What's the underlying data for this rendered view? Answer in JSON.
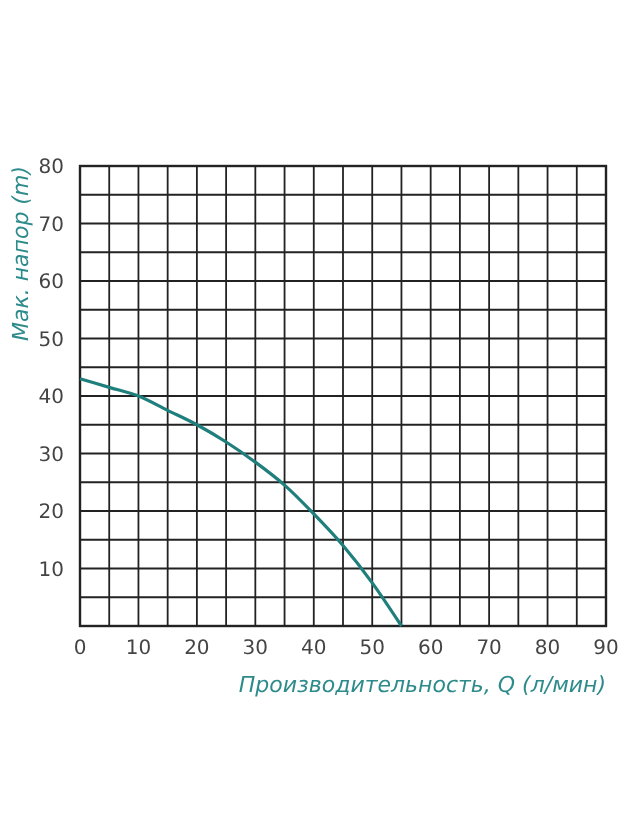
{
  "chart_data": {
    "type": "line",
    "xlabel": "Производительность, Q (л/мин)",
    "ylabel": "Мак. напор (m)",
    "x": [
      0,
      5,
      10,
      15,
      20,
      25,
      30,
      35,
      40,
      45,
      50,
      55
    ],
    "series": [
      {
        "color": "#1f7f7c",
        "values": [
          43,
          41.5,
          40,
          37.5,
          35,
          32,
          28.5,
          24.5,
          19.5,
          14,
          7.5,
          0
        ]
      }
    ],
    "xlim": [
      0,
      90
    ],
    "ylim": [
      0,
      80
    ],
    "xticks": [
      0,
      {
        "value": 5,
        "label": null
      },
      10,
      {
        "value": 15,
        "label": null
      },
      20,
      {
        "value": 25,
        "label": null
      },
      30,
      {
        "value": 35,
        "label": null
      },
      40,
      {
        "value": 45,
        "label": null
      },
      50,
      {
        "value": 55,
        "label": null
      },
      60,
      {
        "value": 65,
        "label": null
      },
      70,
      {
        "value": 75,
        "label": null
      },
      80,
      {
        "value": 85,
        "label": null
      },
      90
    ],
    "yticks": [
      {
        "value": 0,
        "label": null
      },
      {
        "value": 5,
        "label": null
      },
      10,
      {
        "value": 15,
        "label": null
      },
      20,
      {
        "value": 25,
        "label": null
      },
      30,
      {
        "value": 35,
        "label": null
      },
      40,
      {
        "value": 45,
        "label": null
      },
      50,
      {
        "value": 55,
        "label": null
      },
      60,
      {
        "value": 65,
        "label": null
      },
      70,
      {
        "value": 75,
        "label": null
      },
      80
    ],
    "grid": true,
    "marker": "none",
    "line_style": "solid"
  }
}
